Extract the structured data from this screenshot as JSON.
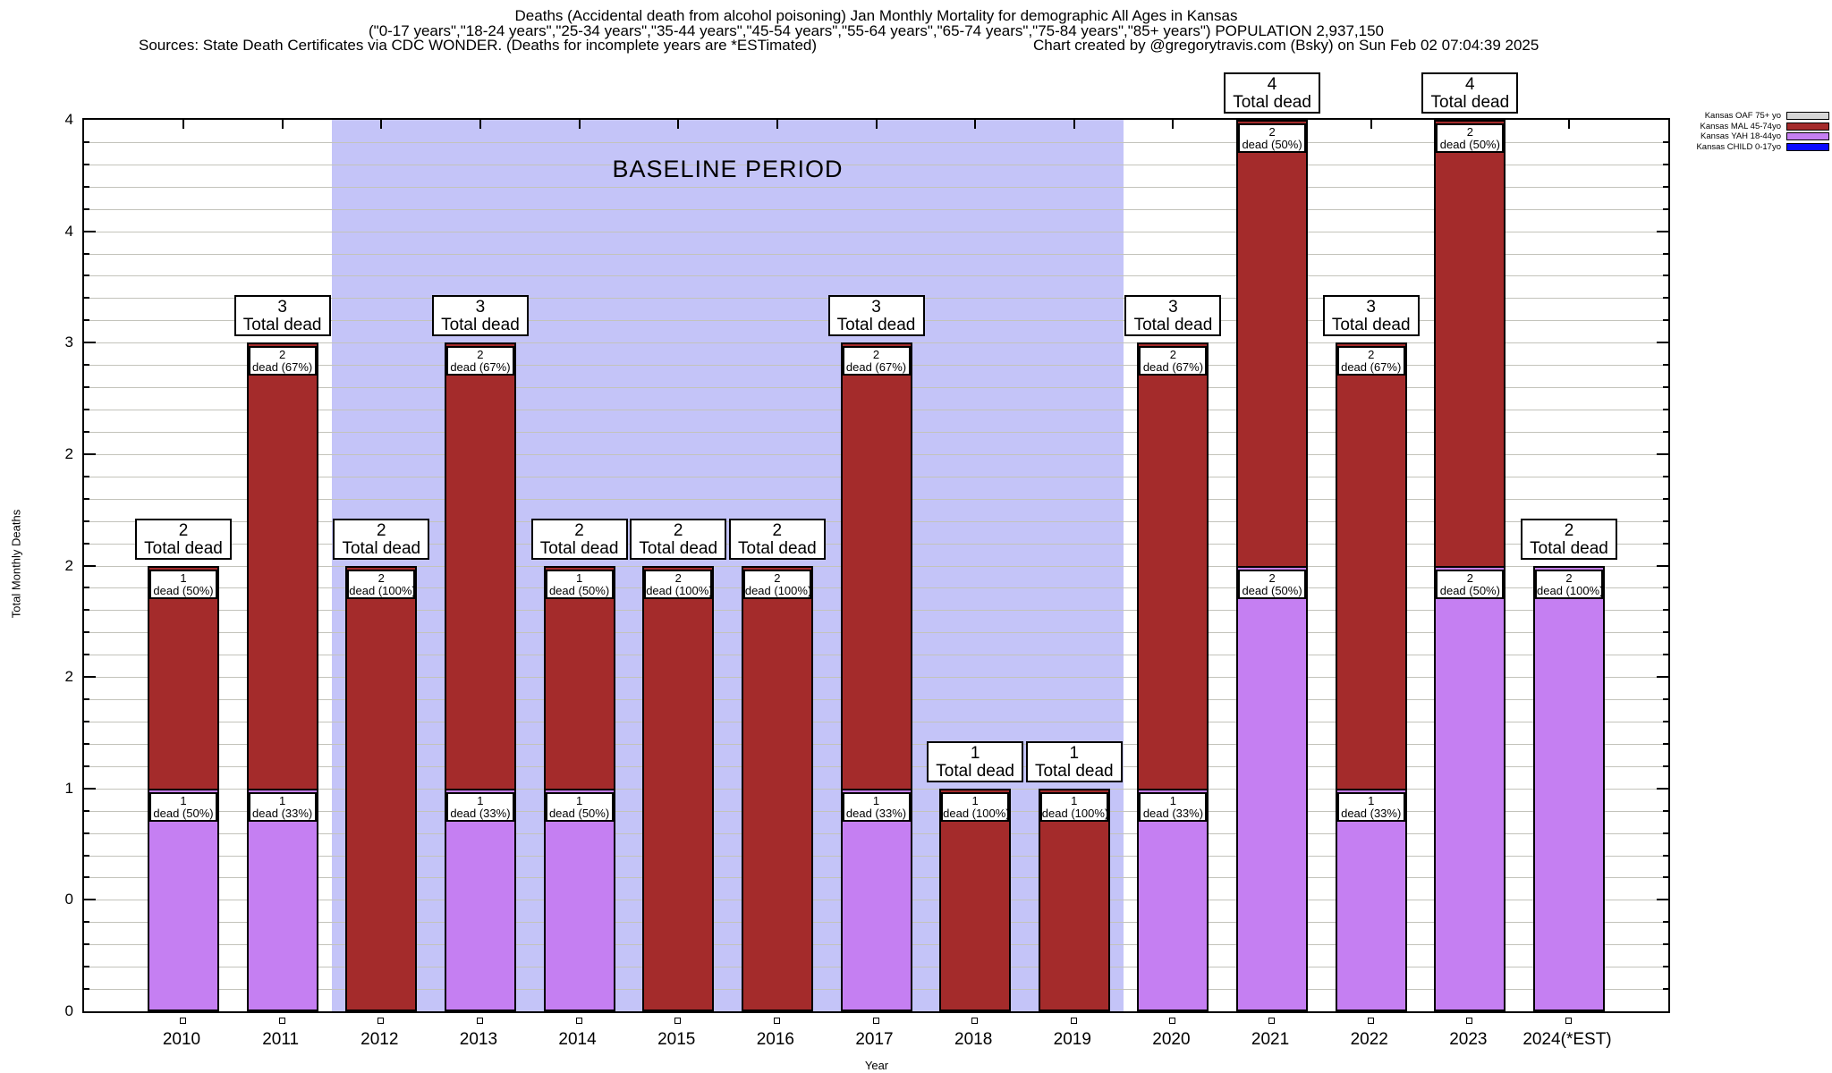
{
  "title": {
    "line1": "Deaths (Accidental death from alcohol poisoning) Jan Monthly Mortality for demographic All Ages in Kansas",
    "line2": "(\"0-17 years\",\"18-24 years\",\"25-34 years\",\"35-44 years\",\"45-54 years\",\"55-64 years\",\"65-74 years\",\"75-84 years\",\"85+ years\") POPULATION 2,937,150",
    "line3_left": "Sources: State Death Certificates via CDC WONDER. (Deaths for incomplete years are *ESTimated)",
    "line3_right": "Chart created by @gregorytravis.com (Bsky) on Sun Feb 02 07:04:39 2025"
  },
  "axes": {
    "ylabel": "Total Monthly Deaths",
    "xlabel": "Year",
    "ytick_labels_bottom_to_top": [
      "0",
      "0",
      "1",
      "2",
      "2",
      "2",
      "3",
      "4",
      "4"
    ]
  },
  "legend": {
    "position": "top-right",
    "items": [
      {
        "label": "Kansas OAF 75+ yo",
        "color": "#d6d6d6"
      },
      {
        "label": "Kansas MAL 45-74yo",
        "color": "#a42b2b"
      },
      {
        "label": "Kansas YAH 18-44yo",
        "color": "#c57ff2"
      },
      {
        "label": "Kansas CHILD 0-17yo",
        "color": "#0a0aff"
      }
    ]
  },
  "chart_data": {
    "type": "bar",
    "stacked": true,
    "title": "Deaths (Accidental death from alcohol poisoning) Jan Monthly Mortality for demographic All Ages in Kansas",
    "xlabel": "Year",
    "ylabel": "Total Monthly Deaths",
    "ylim": [
      0,
      4
    ],
    "ytick_step": 0.5,
    "ytick_labels": [
      "0",
      "0",
      "1",
      "2",
      "2",
      "2",
      "3",
      "4",
      "4"
    ],
    "grid_step": 0.1,
    "x": [
      "2010",
      "2011",
      "2012",
      "2013",
      "2014",
      "2015",
      "2016",
      "2017",
      "2018",
      "2019",
      "2020",
      "2021",
      "2022",
      "2023",
      "2024(*EST)"
    ],
    "series": [
      {
        "key": "YAH",
        "name": "Kansas YAH 18-44yo",
        "color": "#c57ff2",
        "values": [
          1,
          1,
          0,
          1,
          1,
          0,
          0,
          1,
          0,
          0,
          1,
          2,
          1,
          2,
          2
        ]
      },
      {
        "key": "MAL",
        "name": "Kansas MAL 45-74yo",
        "color": "#a42b2b",
        "values": [
          1,
          2,
          2,
          2,
          1,
          2,
          2,
          2,
          1,
          1,
          2,
          2,
          2,
          2,
          0
        ]
      },
      {
        "key": "OAF",
        "name": "Kansas OAF 75+ yo",
        "color": "#d6d6d6",
        "values": [
          0,
          0,
          0,
          0,
          0,
          0,
          0,
          0,
          0,
          0,
          0,
          0,
          0,
          0,
          0
        ]
      },
      {
        "key": "CHILD",
        "name": "Kansas CHILD 0-17yo",
        "color": "#0a0aff",
        "values": [
          0,
          0,
          0,
          0,
          0,
          0,
          0,
          0,
          0,
          0,
          0,
          0,
          0,
          0,
          0
        ]
      }
    ],
    "totals": [
      2,
      3,
      2,
      3,
      2,
      2,
      2,
      3,
      1,
      1,
      3,
      4,
      3,
      4,
      2
    ],
    "baseline": {
      "label": "BASELINE PERIOD",
      "from_slot": 1.5,
      "to_slot": 9.5,
      "color": "#c4c4f8"
    },
    "bars": [
      {
        "year": "2010",
        "total": 2,
        "total_label": "Total dead",
        "segments": [
          {
            "series": "YAH",
            "value": 1,
            "label_lines": [
              "1",
              "dead (50%)"
            ]
          },
          {
            "series": "MAL",
            "value": 1,
            "label_lines": [
              "1",
              "dead (50%)"
            ]
          }
        ]
      },
      {
        "year": "2011",
        "total": 3,
        "total_label": "Total dead",
        "segments": [
          {
            "series": "YAH",
            "value": 1,
            "label_lines": [
              "1",
              "dead (33%)"
            ]
          },
          {
            "series": "MAL",
            "value": 2,
            "label_lines": [
              "2",
              "dead (67%)"
            ]
          }
        ]
      },
      {
        "year": "2012",
        "total": 2,
        "total_label": "Total dead",
        "segments": [
          {
            "series": "MAL",
            "value": 2,
            "label_lines": [
              "2",
              "dead (100%)"
            ]
          }
        ]
      },
      {
        "year": "2013",
        "total": 3,
        "total_label": "Total dead",
        "segments": [
          {
            "series": "YAH",
            "value": 1,
            "label_lines": [
              "1",
              "dead (33%)"
            ]
          },
          {
            "series": "MAL",
            "value": 2,
            "label_lines": [
              "2",
              "dead (67%)"
            ]
          }
        ]
      },
      {
        "year": "2014",
        "total": 2,
        "total_label": "Total dead",
        "segments": [
          {
            "series": "YAH",
            "value": 1,
            "label_lines": [
              "1",
              "dead (50%)"
            ]
          },
          {
            "series": "MAL",
            "value": 1,
            "label_lines": [
              "1",
              "dead (50%)"
            ]
          }
        ]
      },
      {
        "year": "2015",
        "total": 2,
        "total_label": "Total dead",
        "segments": [
          {
            "series": "MAL",
            "value": 2,
            "label_lines": [
              "2",
              "dead (100%)"
            ]
          }
        ]
      },
      {
        "year": "2016",
        "total": 2,
        "total_label": "Total dead",
        "segments": [
          {
            "series": "MAL",
            "value": 2,
            "label_lines": [
              "2",
              "dead (100%)"
            ]
          }
        ]
      },
      {
        "year": "2017",
        "total": 3,
        "total_label": "Total dead",
        "segments": [
          {
            "series": "YAH",
            "value": 1,
            "label_lines": [
              "1",
              "dead (33%)"
            ]
          },
          {
            "series": "MAL",
            "value": 2,
            "label_lines": [
              "2",
              "dead (67%)"
            ]
          }
        ]
      },
      {
        "year": "2018",
        "total": 1,
        "total_label": "Total dead",
        "segments": [
          {
            "series": "MAL",
            "value": 1,
            "label_lines": [
              "1",
              "dead (100%)"
            ]
          }
        ]
      },
      {
        "year": "2019",
        "total": 1,
        "total_label": "Total dead",
        "segments": [
          {
            "series": "MAL",
            "value": 1,
            "label_lines": [
              "1",
              "dead (100%)"
            ]
          }
        ]
      },
      {
        "year": "2020",
        "total": 3,
        "total_label": "Total dead",
        "segments": [
          {
            "series": "YAH",
            "value": 1,
            "label_lines": [
              "1",
              "dead (33%)"
            ]
          },
          {
            "series": "MAL",
            "value": 2,
            "label_lines": [
              "2",
              "dead (67%)"
            ]
          }
        ]
      },
      {
        "year": "2021",
        "total": 4,
        "total_label": "Total dead",
        "segments": [
          {
            "series": "YAH",
            "value": 2,
            "label_lines": [
              "2",
              "dead (50%)"
            ]
          },
          {
            "series": "MAL",
            "value": 2,
            "label_lines": [
              "2",
              "dead (50%)"
            ]
          }
        ]
      },
      {
        "year": "2022",
        "total": 3,
        "total_label": "Total dead",
        "segments": [
          {
            "series": "YAH",
            "value": 1,
            "label_lines": [
              "1",
              "dead (33%)"
            ]
          },
          {
            "series": "MAL",
            "value": 2,
            "label_lines": [
              "2",
              "dead (67%)"
            ]
          }
        ]
      },
      {
        "year": "2023",
        "total": 4,
        "total_label": "Total dead",
        "segments": [
          {
            "series": "YAH",
            "value": 2,
            "label_lines": [
              "2",
              "dead (50%)"
            ]
          },
          {
            "series": "MAL",
            "value": 2,
            "label_lines": [
              "2",
              "dead (50%)"
            ]
          }
        ]
      },
      {
        "year": "2024(*EST)",
        "total": 2,
        "total_label": "Total dead",
        "segments": [
          {
            "series": "YAH",
            "value": 2,
            "label_lines": [
              "2",
              "dead (100%)"
            ]
          }
        ]
      }
    ]
  }
}
